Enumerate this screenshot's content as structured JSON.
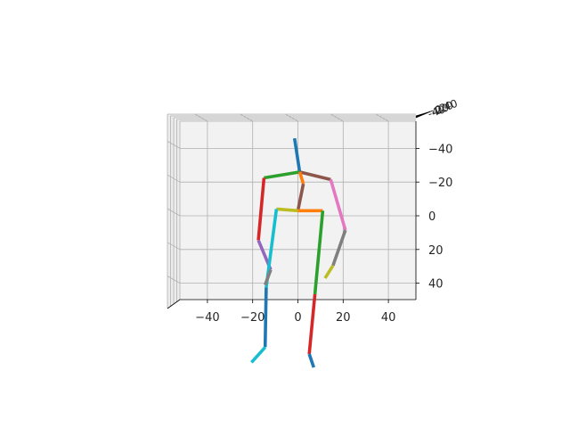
{
  "chart_data": {
    "type": "3d-line",
    "title": "",
    "grid": true,
    "colors": {
      "pane": "#f2f2f2",
      "grid": "#b0b0b0",
      "axis": "#000000"
    },
    "x_axis": {
      "ticks": [
        -40,
        -20,
        0,
        20,
        40
      ],
      "tick_labels": [
        "−40",
        "−20",
        "0",
        "20",
        "40"
      ],
      "range": [
        -52,
        52
      ]
    },
    "y_axis": {
      "ticks": [
        -40,
        -20,
        0,
        20,
        40
      ],
      "tick_labels": [
        "−40",
        "−20",
        "0",
        "20",
        "40"
      ],
      "range": [
        -50,
        50
      ],
      "inverted": true
    },
    "z_axis": {
      "tick_labels": [
        "-40",
        "-20",
        "0",
        "20",
        "40"
      ],
      "note": "depth axis seen edge-on; labels overlap"
    },
    "series": [
      {
        "color": "#1f77b4",
        "points": [
          [
            -1.5,
            -46
          ],
          [
            0.8,
            -26
          ]
        ]
      },
      {
        "color": "#8c564b",
        "points": [
          [
            0.8,
            -26
          ],
          [
            14.5,
            -21.5
          ]
        ]
      },
      {
        "color": "#2ca02c",
        "points": [
          [
            0.8,
            -26
          ],
          [
            -15,
            -22.5
          ]
        ]
      },
      {
        "color": "#ff7f0e",
        "points": [
          [
            0.8,
            -26
          ],
          [
            2.4,
            -19
          ]
        ]
      },
      {
        "color": "#8c564b",
        "points": [
          [
            2.4,
            -19
          ],
          [
            0,
            -3
          ]
        ]
      },
      {
        "color": "#ff7f0e",
        "points": [
          [
            0,
            -3
          ],
          [
            11,
            -3
          ]
        ]
      },
      {
        "color": "#bcbd22",
        "points": [
          [
            0,
            -3
          ],
          [
            -9.5,
            -4
          ]
        ]
      },
      {
        "color": "#d62728",
        "points": [
          [
            -15,
            -22.5
          ],
          [
            -17.5,
            14.5
          ]
        ]
      },
      {
        "color": "#9467bd",
        "points": [
          [
            -17.5,
            14.5
          ],
          [
            -12,
            32
          ]
        ]
      },
      {
        "color": "#e377c2",
        "points": [
          [
            14.5,
            -21.5
          ],
          [
            21,
            8.5
          ]
        ]
      },
      {
        "color": "#7f7f7f",
        "points": [
          [
            21,
            8.5
          ],
          [
            15.5,
            29.5
          ]
        ]
      },
      {
        "color": "#bcbd22",
        "points": [
          [
            15.5,
            29.5
          ],
          [
            12,
            37
          ]
        ]
      },
      {
        "color": "#17becf",
        "points": [
          [
            -9.5,
            -4
          ],
          [
            -14,
            42.5
          ]
        ]
      },
      {
        "color": "#7f7f7f",
        "points": [
          [
            -12,
            32
          ],
          [
            -14.5,
            41
          ]
        ]
      },
      {
        "color": "#1f77b4",
        "points": [
          [
            -14,
            42.5
          ],
          [
            -14.5,
            78
          ]
        ]
      },
      {
        "color": "#17becf",
        "points": [
          [
            -14.5,
            78
          ],
          [
            -20.5,
            87
          ]
        ]
      },
      {
        "color": "#2ca02c",
        "points": [
          [
            11,
            -3
          ],
          [
            7.5,
            46.5
          ]
        ]
      },
      {
        "color": "#d62728",
        "points": [
          [
            7.5,
            46.5
          ],
          [
            5,
            82
          ]
        ]
      },
      {
        "color": "#1f77b4",
        "points": [
          [
            5,
            82
          ],
          [
            7,
            90
          ]
        ]
      }
    ]
  }
}
